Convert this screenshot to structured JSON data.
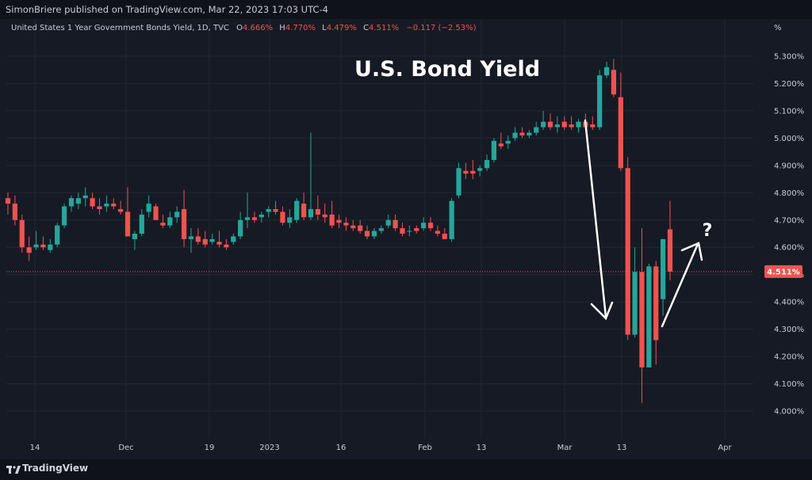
{
  "publisher_line": "SimonBriere published on TradingView.com, Mar 22, 2023 17:03 UTC-4",
  "legend": {
    "symbol": "United States 1 Year Government Bonds Yield, 1D, TVC",
    "open_label": "O",
    "open_value": "4.666%",
    "high_label": "H",
    "high_value": "4.770%",
    "low_label": "L",
    "low_value": "4.479%",
    "close_label": "C",
    "close_value": "4.511%",
    "change": "−0.117 (−2.53%)"
  },
  "brand": "TradingView",
  "colors": {
    "up": "#26a69a",
    "down": "#ef5350",
    "background": "#161a25",
    "grid": "#232734"
  },
  "chart_data": {
    "type": "candlestick",
    "title": "U.S. Bond Yield",
    "annotation": "?",
    "y_unit_label": "%",
    "ylim": [
      3.85,
      5.45
    ],
    "y_ticks": [
      "4.000%",
      "4.100%",
      "4.200%",
      "4.300%",
      "4.400%",
      "4.500%",
      "4.600%",
      "4.700%",
      "4.800%",
      "4.900%",
      "5.000%",
      "5.100%",
      "5.200%",
      "5.300%"
    ],
    "x_ticks": [
      "14",
      "Dec",
      "19",
      "2023",
      "16",
      "Feb",
      "13",
      "Mar",
      "13",
      "Apr"
    ],
    "last_price": 4.511,
    "last_price_label": "4.511%",
    "candles": [
      {
        "o": 4.78,
        "h": 4.8,
        "l": 4.72,
        "c": 4.76
      },
      {
        "o": 4.76,
        "h": 4.79,
        "l": 4.68,
        "c": 4.7
      },
      {
        "o": 4.7,
        "h": 4.72,
        "l": 4.58,
        "c": 4.6
      },
      {
        "o": 4.6,
        "h": 4.64,
        "l": 4.55,
        "c": 4.58
      },
      {
        "o": 4.6,
        "h": 4.66,
        "l": 4.59,
        "c": 4.61
      },
      {
        "o": 4.61,
        "h": 4.64,
        "l": 4.59,
        "c": 4.6
      },
      {
        "o": 4.59,
        "h": 4.63,
        "l": 4.58,
        "c": 4.61
      },
      {
        "o": 4.61,
        "h": 4.69,
        "l": 4.6,
        "c": 4.68
      },
      {
        "o": 4.68,
        "h": 4.76,
        "l": 4.67,
        "c": 4.75
      },
      {
        "o": 4.75,
        "h": 4.79,
        "l": 4.73,
        "c": 4.78
      },
      {
        "o": 4.76,
        "h": 4.8,
        "l": 4.74,
        "c": 4.78
      },
      {
        "o": 4.78,
        "h": 4.82,
        "l": 4.75,
        "c": 4.79
      },
      {
        "o": 4.78,
        "h": 4.8,
        "l": 4.74,
        "c": 4.75
      },
      {
        "o": 4.75,
        "h": 4.78,
        "l": 4.72,
        "c": 4.74
      },
      {
        "o": 4.75,
        "h": 4.79,
        "l": 4.73,
        "c": 4.76
      },
      {
        "o": 4.76,
        "h": 4.78,
        "l": 4.74,
        "c": 4.75
      },
      {
        "o": 4.74,
        "h": 4.77,
        "l": 4.72,
        "c": 4.73
      },
      {
        "o": 4.73,
        "h": 4.82,
        "l": 4.65,
        "c": 4.64
      },
      {
        "o": 4.63,
        "h": 4.66,
        "l": 4.59,
        "c": 4.65
      },
      {
        "o": 4.65,
        "h": 4.74,
        "l": 4.64,
        "c": 4.72
      },
      {
        "o": 4.73,
        "h": 4.79,
        "l": 4.71,
        "c": 4.76
      },
      {
        "o": 4.75,
        "h": 4.76,
        "l": 4.7,
        "c": 4.7
      },
      {
        "o": 4.69,
        "h": 4.72,
        "l": 4.67,
        "c": 4.68
      },
      {
        "o": 4.68,
        "h": 4.73,
        "l": 4.67,
        "c": 4.71
      },
      {
        "o": 4.71,
        "h": 4.75,
        "l": 4.69,
        "c": 4.73
      },
      {
        "o": 4.74,
        "h": 4.81,
        "l": 4.6,
        "c": 4.63
      },
      {
        "o": 4.63,
        "h": 4.67,
        "l": 4.58,
        "c": 4.64
      },
      {
        "o": 4.64,
        "h": 4.67,
        "l": 4.61,
        "c": 4.62
      },
      {
        "o": 4.63,
        "h": 4.66,
        "l": 4.6,
        "c": 4.61
      },
      {
        "o": 4.62,
        "h": 4.65,
        "l": 4.61,
        "c": 4.63
      },
      {
        "o": 4.62,
        "h": 4.66,
        "l": 4.6,
        "c": 4.61
      },
      {
        "o": 4.61,
        "h": 4.63,
        "l": 4.59,
        "c": 4.6
      },
      {
        "o": 4.62,
        "h": 4.65,
        "l": 4.61,
        "c": 4.64
      },
      {
        "o": 4.64,
        "h": 4.73,
        "l": 4.63,
        "c": 4.7
      },
      {
        "o": 4.7,
        "h": 4.8,
        "l": 4.67,
        "c": 4.71
      },
      {
        "o": 4.71,
        "h": 4.73,
        "l": 4.69,
        "c": 4.7
      },
      {
        "o": 4.71,
        "h": 4.73,
        "l": 4.69,
        "c": 4.72
      },
      {
        "o": 4.73,
        "h": 4.75,
        "l": 4.71,
        "c": 4.74
      },
      {
        "o": 4.74,
        "h": 4.77,
        "l": 4.72,
        "c": 4.73
      },
      {
        "o": 4.73,
        "h": 4.75,
        "l": 4.68,
        "c": 4.69
      },
      {
        "o": 4.69,
        "h": 4.74,
        "l": 4.67,
        "c": 4.71
      },
      {
        "o": 4.7,
        "h": 4.78,
        "l": 4.69,
        "c": 4.77
      },
      {
        "o": 4.76,
        "h": 4.8,
        "l": 4.7,
        "c": 4.71
      },
      {
        "o": 4.71,
        "h": 5.02,
        "l": 4.7,
        "c": 4.74
      },
      {
        "o": 4.74,
        "h": 4.79,
        "l": 4.7,
        "c": 4.72
      },
      {
        "o": 4.72,
        "h": 4.76,
        "l": 4.69,
        "c": 4.71
      },
      {
        "o": 4.72,
        "h": 4.77,
        "l": 4.67,
        "c": 4.68
      },
      {
        "o": 4.7,
        "h": 4.72,
        "l": 4.67,
        "c": 4.69
      },
      {
        "o": 4.69,
        "h": 4.71,
        "l": 4.66,
        "c": 4.68
      },
      {
        "o": 4.68,
        "h": 4.7,
        "l": 4.66,
        "c": 4.67
      },
      {
        "o": 4.68,
        "h": 4.7,
        "l": 4.65,
        "c": 4.66
      },
      {
        "o": 4.66,
        "h": 4.68,
        "l": 4.63,
        "c": 4.64
      },
      {
        "o": 4.64,
        "h": 4.67,
        "l": 4.63,
        "c": 4.66
      },
      {
        "o": 4.66,
        "h": 4.68,
        "l": 4.65,
        "c": 4.67
      },
      {
        "o": 4.68,
        "h": 4.72,
        "l": 4.67,
        "c": 4.7
      },
      {
        "o": 4.7,
        "h": 4.72,
        "l": 4.66,
        "c": 4.67
      },
      {
        "o": 4.67,
        "h": 4.69,
        "l": 4.64,
        "c": 4.65
      },
      {
        "o": 4.66,
        "h": 4.68,
        "l": 4.64,
        "c": 4.66
      },
      {
        "o": 4.67,
        "h": 4.68,
        "l": 4.65,
        "c": 4.66
      },
      {
        "o": 4.67,
        "h": 4.71,
        "l": 4.66,
        "c": 4.69
      },
      {
        "o": 4.69,
        "h": 4.71,
        "l": 4.66,
        "c": 4.67
      },
      {
        "o": 4.66,
        "h": 4.68,
        "l": 4.64,
        "c": 4.65
      },
      {
        "o": 4.65,
        "h": 4.67,
        "l": 4.63,
        "c": 4.63
      },
      {
        "o": 4.63,
        "h": 4.78,
        "l": 4.62,
        "c": 4.77
      },
      {
        "o": 4.79,
        "h": 4.91,
        "l": 4.78,
        "c": 4.89
      },
      {
        "o": 4.88,
        "h": 4.91,
        "l": 4.85,
        "c": 4.87
      },
      {
        "o": 4.88,
        "h": 4.92,
        "l": 4.85,
        "c": 4.87
      },
      {
        "o": 4.88,
        "h": 4.9,
        "l": 4.86,
        "c": 4.89
      },
      {
        "o": 4.89,
        "h": 4.94,
        "l": 4.88,
        "c": 4.92
      },
      {
        "o": 4.92,
        "h": 5.0,
        "l": 4.91,
        "c": 4.99
      },
      {
        "o": 4.98,
        "h": 5.02,
        "l": 4.96,
        "c": 4.97
      },
      {
        "o": 4.98,
        "h": 5.01,
        "l": 4.96,
        "c": 4.99
      },
      {
        "o": 5.0,
        "h": 5.04,
        "l": 4.99,
        "c": 5.02
      },
      {
        "o": 5.02,
        "h": 5.04,
        "l": 5.0,
        "c": 5.01
      },
      {
        "o": 5.01,
        "h": 5.03,
        "l": 5.0,
        "c": 5.02
      },
      {
        "o": 5.02,
        "h": 5.06,
        "l": 5.01,
        "c": 5.04
      },
      {
        "o": 5.04,
        "h": 5.1,
        "l": 5.03,
        "c": 5.06
      },
      {
        "o": 5.06,
        "h": 5.09,
        "l": 5.03,
        "c": 5.04
      },
      {
        "o": 5.04,
        "h": 5.08,
        "l": 5.02,
        "c": 5.05
      },
      {
        "o": 5.06,
        "h": 5.08,
        "l": 5.03,
        "c": 5.04
      },
      {
        "o": 5.05,
        "h": 5.08,
        "l": 5.03,
        "c": 5.04
      },
      {
        "o": 5.04,
        "h": 5.07,
        "l": 5.02,
        "c": 5.06
      },
      {
        "o": 5.06,
        "h": 5.09,
        "l": 5.03,
        "c": 5.04
      },
      {
        "o": 5.05,
        "h": 5.08,
        "l": 5.03,
        "c": 5.04
      },
      {
        "o": 5.04,
        "h": 5.25,
        "l": 5.03,
        "c": 5.23
      },
      {
        "o": 5.23,
        "h": 5.28,
        "l": 5.22,
        "c": 5.26
      },
      {
        "o": 5.25,
        "h": 5.29,
        "l": 5.15,
        "c": 5.16
      },
      {
        "o": 5.15,
        "h": 5.24,
        "l": 4.88,
        "c": 4.89
      },
      {
        "o": 4.89,
        "h": 4.93,
        "l": 4.26,
        "c": 4.28
      },
      {
        "o": 4.28,
        "h": 4.6,
        "l": 4.27,
        "c": 4.51
      },
      {
        "o": 4.51,
        "h": 4.67,
        "l": 4.03,
        "c": 4.16
      },
      {
        "o": 4.16,
        "h": 4.54,
        "l": 4.16,
        "c": 4.53
      },
      {
        "o": 4.53,
        "h": 4.55,
        "l": 4.17,
        "c": 4.26
      },
      {
        "o": 4.41,
        "h": 4.63,
        "l": 4.35,
        "c": 4.63
      },
      {
        "o": 4.666,
        "h": 4.77,
        "l": 4.479,
        "c": 4.511
      }
    ]
  }
}
